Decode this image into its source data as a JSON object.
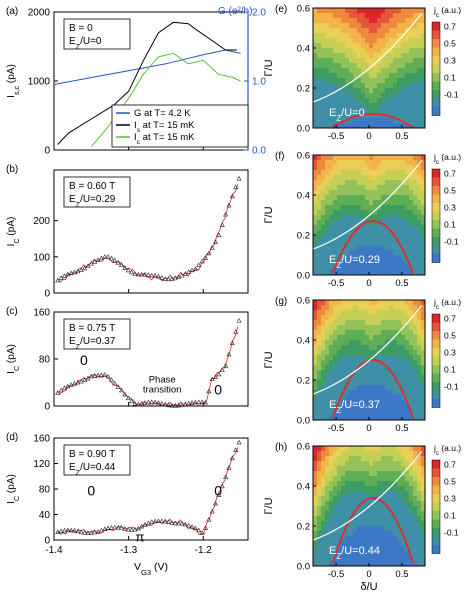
{
  "panels_left": [
    {
      "id": "a",
      "label": "(a)",
      "box": [
        "B = 0",
        "E_Z/U=0"
      ],
      "ylabel": "I_s, I_c (pA)",
      "ylabel_main": "I",
      "ylabel_sub": "s,c",
      "ylabel_unit": " (pA)",
      "ylim": [
        0,
        2000
      ],
      "yticks": [
        "0",
        "1000",
        "2000"
      ],
      "right_axis": {
        "label": "G (e²/h)",
        "ylim": [
          0,
          2.0
        ],
        "ticks": [
          "0.0",
          "1.0",
          "2.0"
        ],
        "color": "#2a56c6"
      }
    },
    {
      "id": "b",
      "label": "(b)",
      "box": [
        "B = 0.60 T",
        "E_Z/U=0.29"
      ],
      "ylabel_main": "I",
      "ylabel_sub": "C",
      "ylabel_unit": " (pA)",
      "ylim": [
        0,
        340
      ],
      "yticks": [
        "0",
        "100",
        "200"
      ]
    },
    {
      "id": "c",
      "label": "(c)",
      "box": [
        "B = 0.75 T",
        "E_Z/U=0.37"
      ],
      "ylabel_main": "I",
      "ylabel_sub": "C",
      "ylabel_unit": " (pA)",
      "ylim": [
        0,
        160
      ],
      "yticks": [
        "0",
        "80",
        "160"
      ],
      "annotations": [
        "0",
        "Phase",
        "transition",
        "0"
      ]
    },
    {
      "id": "d",
      "label": "(d)",
      "box": [
        "B = 0.90 T",
        "E_Z/U=0.44"
      ],
      "ylabel_main": "I",
      "ylabel_sub": "C",
      "ylabel_unit": " (pA)",
      "ylim": [
        0,
        160
      ],
      "yticks": [
        "0",
        "40",
        "80",
        "120",
        "160"
      ],
      "annotations": [
        "0",
        "π",
        "0"
      ],
      "xticks": [
        "-1.4",
        "-1.3",
        "-1.2"
      ],
      "xlabel_main": "V",
      "xlabel_sub": "G3",
      "xlabel_unit": " (V)"
    }
  ],
  "panels_right": [
    {
      "id": "e",
      "label": "(e)",
      "inner": "E_Z/U=0",
      "inner_main": "E",
      "inner_sub": "Z",
      "inner_rest": "/U=0",
      "ez": 0
    },
    {
      "id": "f",
      "label": "(f)",
      "inner": "E_Z/U=0.29",
      "inner_main": "E",
      "inner_sub": "Z",
      "inner_rest": "/U=0.29",
      "ez": 0.29
    },
    {
      "id": "g",
      "label": "(g)",
      "inner": "E_Z/U=0.37",
      "inner_main": "E",
      "inner_sub": "Z",
      "inner_rest": "/U=0.37",
      "ez": 0.37
    },
    {
      "id": "h",
      "label": "(h)",
      "inner": "E_Z/U=0.44",
      "inner_main": "E",
      "inner_sub": "Z",
      "inner_rest": "/U=0.44",
      "ez": 0.44
    }
  ],
  "right_axes": {
    "ylabel": "Γ/U",
    "yticks": [
      "0.0",
      "0.2",
      "0.4",
      "0.6"
    ],
    "xticks": [
      "-0.5",
      "0",
      "0.5"
    ],
    "xlabel": "δ/U",
    "colorbar_title": "j_c (a.u.)",
    "colorbar_title_main": "j",
    "colorbar_title_sub": "c",
    "colorbar_title_rest": " (a.u.)",
    "colorbar_ticks": [
      "0.7",
      "0.5",
      "0.3",
      "0.1",
      "-0.1"
    ],
    "colorbar_colors": [
      "#d7272b",
      "#e6553a",
      "#ee8a3e",
      "#f2b34a",
      "#e9cf55",
      "#c5cf55",
      "#94c25a",
      "#5fae56",
      "#3c9c63",
      "#3f8fa7",
      "#3c78c6"
    ]
  },
  "legend_a": [
    {
      "text_main": "G at T= 4.2 K",
      "color": "#2a56c6"
    },
    {
      "text_main": "I",
      "sub": "s",
      "text_rest": " at T= 15 mK",
      "color": "#000000"
    },
    {
      "text_main": "I",
      "sub": "c",
      "text_rest": " at T= 15 mK",
      "color": "#55c43a"
    }
  ],
  "colors": {
    "blue": "#2a56c6",
    "black": "#000000",
    "green": "#55c43a",
    "marker": "#222222",
    "fit": "#e04040"
  },
  "chart_data": [
    {
      "panel": "a",
      "type": "line",
      "x_range": [
        -1.4,
        -1.15
      ],
      "series": [
        {
          "name": "G at T= 4.2 K",
          "axis": "right",
          "x": [
            -1.4,
            -1.35,
            -1.3,
            -1.25,
            -1.2,
            -1.17,
            -1.15
          ],
          "y": [
            0.95,
            1.05,
            1.15,
            1.25,
            1.38,
            1.45,
            1.4
          ]
        },
        {
          "name": "I_s at T= 15 mK",
          "axis": "left",
          "x": [
            -1.395,
            -1.38,
            -1.35,
            -1.32,
            -1.3,
            -1.28,
            -1.26,
            -1.24,
            -1.22,
            -1.21,
            -1.19,
            -1.17,
            -1.155
          ],
          "y": [
            80,
            250,
            450,
            650,
            850,
            1300,
            1700,
            1850,
            1830,
            1750,
            1600,
            1450,
            1450
          ]
        },
        {
          "name": "I_c at T= 15 mK",
          "axis": "left",
          "x": [
            -1.35,
            -1.33,
            -1.31,
            -1.3,
            -1.28,
            -1.26,
            -1.24,
            -1.22,
            -1.2,
            -1.18,
            -1.16,
            -1.15
          ],
          "y": [
            50,
            300,
            600,
            750,
            1100,
            1350,
            1400,
            1250,
            1300,
            1100,
            1050,
            1000
          ]
        }
      ]
    },
    {
      "panel": "b",
      "type": "scatter",
      "x_range": [
        -1.4,
        -1.15
      ],
      "series": [
        {
          "name": "data",
          "x": [
            -1.395,
            -1.37,
            -1.35,
            -1.33,
            -1.31,
            -1.29,
            -1.27,
            -1.25,
            -1.23,
            -1.21,
            -1.195,
            -1.18,
            -1.17,
            -1.16,
            -1.15
          ],
          "y": [
            30,
            60,
            85,
            95,
            80,
            55,
            42,
            40,
            50,
            60,
            100,
            160,
            220,
            270,
            320
          ]
        }
      ]
    },
    {
      "panel": "c",
      "type": "scatter",
      "x_range": [
        -1.4,
        -1.15
      ],
      "series": [
        {
          "name": "data",
          "x": [
            -1.395,
            -1.37,
            -1.35,
            -1.33,
            -1.32,
            -1.31,
            -1.3,
            -1.29,
            -1.25,
            -1.21,
            -1.195,
            -1.19,
            -1.18,
            -1.17,
            -1.16,
            -1.15
          ],
          "y": [
            20,
            40,
            52,
            50,
            38,
            28,
            15,
            4,
            3,
            3,
            5,
            45,
            55,
            70,
            110,
            150
          ]
        }
      ]
    },
    {
      "panel": "d",
      "type": "scatter",
      "x_range": [
        -1.4,
        -1.15
      ],
      "series": [
        {
          "name": "data",
          "x": [
            -1.395,
            -1.37,
            -1.34,
            -1.31,
            -1.29,
            -1.27,
            -1.25,
            -1.23,
            -1.21,
            -1.2,
            -1.19,
            -1.18,
            -1.17,
            -1.16,
            -1.15
          ],
          "y": [
            10,
            15,
            12,
            20,
            18,
            25,
            30,
            28,
            15,
            8,
            40,
            70,
            100,
            130,
            155
          ]
        }
      ]
    },
    {
      "panel": "e-h",
      "type": "heatmap",
      "x_label": "δ/U",
      "y_label": "Γ/U",
      "x_range": [
        -0.85,
        0.85
      ],
      "y_range": [
        0,
        0.6
      ],
      "z_label": "j_c (a.u.)",
      "z_range": [
        -0.1,
        0.7
      ],
      "phase_boundary_peak": {
        "e": 0.07,
        "f": 0.27,
        "g": 0.3,
        "h": 0.34
      }
    }
  ]
}
